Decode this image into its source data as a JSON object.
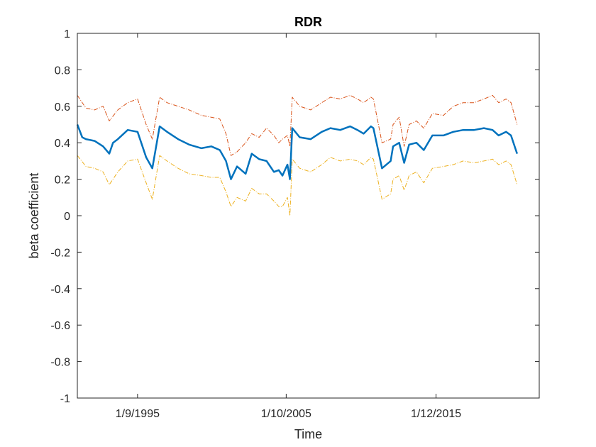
{
  "chart_data": {
    "type": "line",
    "title": "RDR",
    "xlabel": "Time",
    "ylabel": "beta coefficient",
    "xlim": [
      "1991-08-01",
      "2022-12-01"
    ],
    "ylim": [
      -1,
      1
    ],
    "yticks": [
      -1,
      -0.8,
      -0.6,
      -0.4,
      -0.2,
      0,
      0.2,
      0.4,
      0.6,
      0.8,
      1
    ],
    "ytick_labels": [
      "-1",
      "-0.8",
      "-0.6",
      "-0.4",
      "-0.2",
      "0",
      "0.2",
      "0.4",
      "0.6",
      "0.8",
      "1"
    ],
    "xticks": [
      "1995-09-01",
      "2005-10-01",
      "2015-12-01"
    ],
    "xtick_labels": [
      "1/9/1995",
      "1/10/2005",
      "1/12/2015"
    ],
    "grid": false,
    "series": [
      {
        "color": "#D95319",
        "style": "dashdot",
        "x": [
          "1991-08-01",
          "1992-03-01",
          "1992-10-01",
          "1993-05-01",
          "1993-10-01",
          "1994-05-01",
          "1995-01-01",
          "1995-09-01",
          "1996-04-01",
          "1996-09-01",
          "1997-03-01",
          "1997-09-01",
          "1998-06-01",
          "1999-03-01",
          "2000-01-01",
          "2000-09-01",
          "2001-04-01",
          "2001-09-01",
          "2002-01-01",
          "2002-06-01",
          "2003-01-01",
          "2003-06-01",
          "2003-12-01",
          "2004-06-01",
          "2004-12-01",
          "2005-04-01",
          "2005-07-01",
          "2005-11-01",
          "2006-01-01",
          "2006-03-01",
          "2006-09-01",
          "2007-06-01",
          "2008-03-01",
          "2008-10-01",
          "2009-06-01",
          "2010-02-01",
          "2010-08-01",
          "2011-01-01",
          "2011-07-01",
          "2011-09-01",
          "2012-04-01",
          "2012-11-01",
          "2013-01-01",
          "2013-06-01",
          "2013-10-01",
          "2014-02-01",
          "2014-08-01",
          "2015-02-01",
          "2015-09-01",
          "2016-06-01",
          "2017-02-01",
          "2017-10-01",
          "2018-07-01",
          "2019-03-01",
          "2019-10-01",
          "2020-03-01",
          "2020-09-01",
          "2021-01-01",
          "2021-06-01"
        ],
        "y": [
          0.66,
          0.59,
          0.58,
          0.6,
          0.52,
          0.58,
          0.62,
          0.64,
          0.5,
          0.42,
          0.65,
          0.62,
          0.6,
          0.58,
          0.55,
          0.54,
          0.53,
          0.45,
          0.33,
          0.35,
          0.4,
          0.45,
          0.43,
          0.48,
          0.44,
          0.4,
          0.42,
          0.44,
          0.38,
          0.65,
          0.6,
          0.58,
          0.62,
          0.65,
          0.64,
          0.66,
          0.64,
          0.62,
          0.65,
          0.64,
          0.4,
          0.42,
          0.5,
          0.54,
          0.38,
          0.5,
          0.52,
          0.48,
          0.56,
          0.55,
          0.6,
          0.62,
          0.62,
          0.64,
          0.66,
          0.62,
          0.64,
          0.62,
          0.5
        ]
      },
      {
        "color": "#0072BD",
        "style": "solid",
        "x": [
          "1991-08-01",
          "1991-12-01",
          "1992-03-01",
          "1992-10-01",
          "1993-05-01",
          "1993-10-01",
          "1994-01-01",
          "1994-05-01",
          "1995-01-01",
          "1995-09-01",
          "1996-04-01",
          "1996-09-01",
          "1997-03-01",
          "1997-09-01",
          "1998-06-01",
          "1999-03-01",
          "2000-01-01",
          "2000-09-01",
          "2001-04-01",
          "2001-09-01",
          "2002-01-01",
          "2002-06-01",
          "2003-01-01",
          "2003-06-01",
          "2003-12-01",
          "2004-06-01",
          "2004-12-01",
          "2005-04-01",
          "2005-07-01",
          "2005-11-01",
          "2006-01-01",
          "2006-03-01",
          "2006-09-01",
          "2007-06-01",
          "2008-03-01",
          "2008-10-01",
          "2009-06-01",
          "2010-02-01",
          "2010-08-01",
          "2011-01-01",
          "2011-07-01",
          "2011-09-01",
          "2012-04-01",
          "2012-11-01",
          "2013-01-01",
          "2013-06-01",
          "2013-10-01",
          "2014-02-01",
          "2014-08-01",
          "2015-02-01",
          "2015-09-01",
          "2016-06-01",
          "2017-02-01",
          "2017-10-01",
          "2018-07-01",
          "2019-03-01",
          "2019-10-01",
          "2020-03-01",
          "2020-09-01",
          "2021-01-01",
          "2021-06-01"
        ],
        "y": [
          0.5,
          0.43,
          0.42,
          0.41,
          0.38,
          0.34,
          0.4,
          0.42,
          0.47,
          0.46,
          0.32,
          0.26,
          0.49,
          0.46,
          0.42,
          0.39,
          0.37,
          0.38,
          0.36,
          0.3,
          0.2,
          0.27,
          0.23,
          0.34,
          0.31,
          0.3,
          0.24,
          0.25,
          0.22,
          0.28,
          0.2,
          0.48,
          0.43,
          0.42,
          0.46,
          0.48,
          0.47,
          0.49,
          0.47,
          0.45,
          0.49,
          0.48,
          0.26,
          0.3,
          0.38,
          0.4,
          0.29,
          0.39,
          0.4,
          0.36,
          0.44,
          0.44,
          0.46,
          0.47,
          0.47,
          0.48,
          0.47,
          0.44,
          0.46,
          0.44,
          0.34
        ]
      },
      {
        "color": "#EDB120",
        "style": "dashdot",
        "x": [
          "1991-08-01",
          "1992-03-01",
          "1992-10-01",
          "1993-05-01",
          "1993-10-01",
          "1994-05-01",
          "1995-01-01",
          "1995-09-01",
          "1996-04-01",
          "1996-09-01",
          "1997-03-01",
          "1997-09-01",
          "1998-06-01",
          "1999-03-01",
          "2000-01-01",
          "2000-09-01",
          "2001-04-01",
          "2001-09-01",
          "2002-01-01",
          "2002-06-01",
          "2003-01-01",
          "2003-06-01",
          "2003-12-01",
          "2004-06-01",
          "2004-12-01",
          "2005-04-01",
          "2005-07-01",
          "2005-11-01",
          "2006-01-01",
          "2006-03-01",
          "2006-09-01",
          "2007-06-01",
          "2008-03-01",
          "2008-10-01",
          "2009-06-01",
          "2010-02-01",
          "2010-08-01",
          "2011-01-01",
          "2011-07-01",
          "2011-09-01",
          "2012-04-01",
          "2012-11-01",
          "2013-01-01",
          "2013-06-01",
          "2013-10-01",
          "2014-02-01",
          "2014-08-01",
          "2015-02-01",
          "2015-09-01",
          "2016-06-01",
          "2017-02-01",
          "2017-10-01",
          "2018-07-01",
          "2019-03-01",
          "2019-10-01",
          "2020-03-01",
          "2020-09-01",
          "2021-01-01",
          "2021-06-01"
        ],
        "y": [
          0.33,
          0.27,
          0.26,
          0.24,
          0.17,
          0.24,
          0.3,
          0.31,
          0.18,
          0.09,
          0.33,
          0.3,
          0.26,
          0.23,
          0.22,
          0.21,
          0.21,
          0.13,
          0.05,
          0.1,
          0.08,
          0.15,
          0.12,
          0.12,
          0.08,
          0.05,
          0.05,
          0.1,
          0.0,
          0.31,
          0.26,
          0.24,
          0.28,
          0.32,
          0.3,
          0.31,
          0.3,
          0.28,
          0.32,
          0.31,
          0.09,
          0.12,
          0.2,
          0.22,
          0.14,
          0.22,
          0.24,
          0.18,
          0.26,
          0.27,
          0.28,
          0.3,
          0.29,
          0.3,
          0.31,
          0.28,
          0.3,
          0.28,
          0.17
        ]
      }
    ]
  }
}
